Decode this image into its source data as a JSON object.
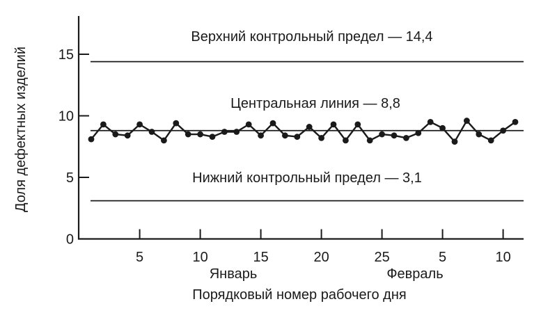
{
  "figure": {
    "background": "#ffffff",
    "ink_color": "#1a1a1a"
  },
  "chart_data": {
    "type": "line",
    "title": "",
    "xlabel": "Порядковый номер рабочего дня",
    "ylabel": "Доля дефектных изделий",
    "ylim": [
      0,
      18
    ],
    "grid": false,
    "legend": false,
    "y_ticks": [
      0,
      5,
      10,
      15
    ],
    "x_ticks": [
      {
        "day": 5,
        "label": "5"
      },
      {
        "day": 10,
        "label": "10"
      },
      {
        "day": 15,
        "label": "15"
      },
      {
        "day": 20,
        "label": "20"
      },
      {
        "day": 25,
        "label": "25"
      },
      {
        "day": 30,
        "label": "5"
      },
      {
        "day": 35,
        "label": "10"
      }
    ],
    "month_labels": [
      {
        "label": "Январь",
        "center_day": 12.7
      },
      {
        "label": "Февраль",
        "center_day": 27.7
      }
    ],
    "control_lines": [
      {
        "id": "upper-control-limit",
        "label": "Верхний контрольный предел — 14,4",
        "value": 14.4
      },
      {
        "id": "center-line",
        "label": "Центральная линия — 8,8",
        "value": 8.8
      },
      {
        "id": "lower-control-limit",
        "label": "Нижний контрольный предел — 3,1",
        "value": 3.1
      }
    ],
    "days": [
      1,
      2,
      3,
      4,
      5,
      6,
      7,
      8,
      9,
      10,
      11,
      12,
      13,
      14,
      15,
      16,
      17,
      18,
      19,
      20,
      21,
      22,
      23,
      24,
      25,
      26,
      27,
      28,
      29,
      30,
      31,
      32,
      33,
      34,
      35,
      36
    ],
    "values": [
      8.1,
      9.3,
      8.5,
      8.4,
      9.3,
      8.7,
      8.0,
      9.4,
      8.5,
      8.5,
      8.3,
      8.7,
      8.7,
      9.3,
      8.4,
      9.4,
      8.4,
      8.3,
      9.1,
      8.2,
      9.3,
      8.0,
      9.3,
      8.0,
      8.5,
      8.4,
      8.2,
      8.6,
      9.5,
      9.0,
      7.9,
      9.6,
      8.5,
      8.0,
      8.8,
      9.5
    ]
  }
}
